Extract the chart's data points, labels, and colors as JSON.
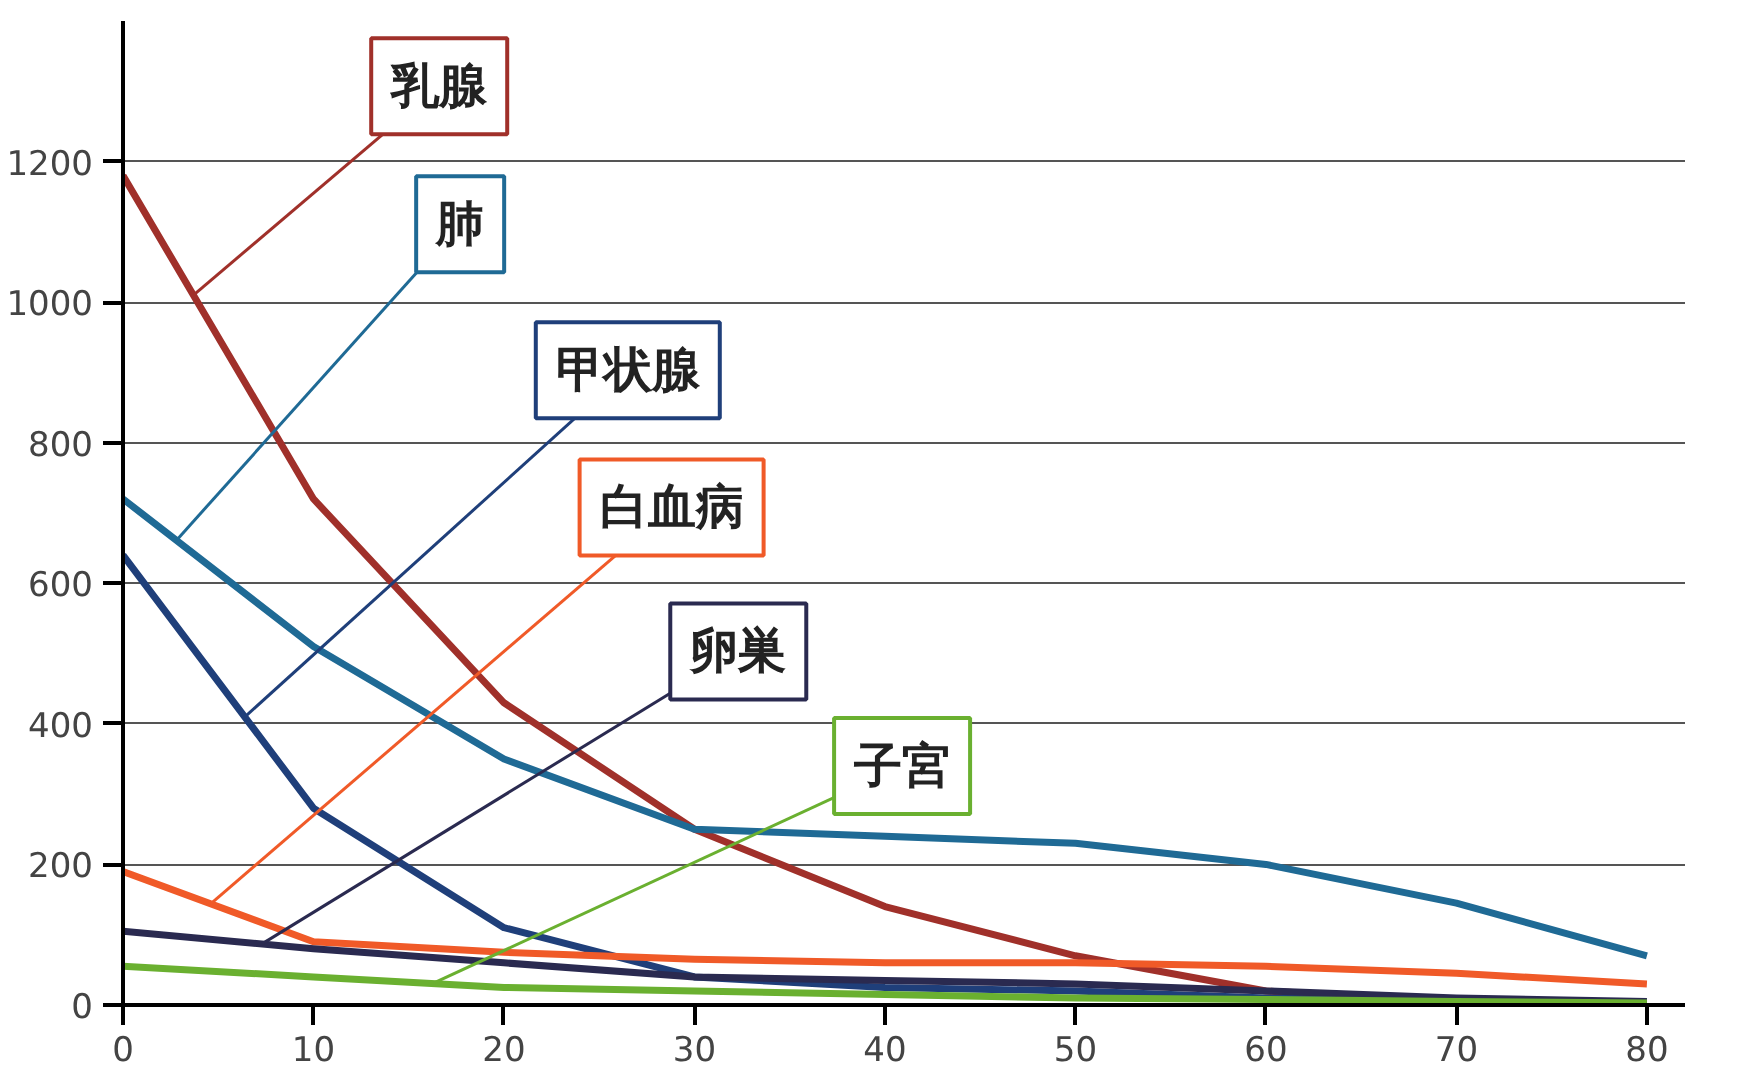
{
  "chart_data": {
    "type": "line",
    "x": [
      0,
      10,
      20,
      30,
      40,
      50,
      60,
      70,
      80
    ],
    "series": [
      {
        "color": "#a0302a",
        "values": [
          1180,
          720,
          430,
          250,
          140,
          70,
          20,
          5,
          0
        ]
      },
      {
        "color": "#1f6a95",
        "values": [
          720,
          510,
          350,
          250,
          240,
          230,
          200,
          145,
          70
        ]
      },
      {
        "color": "#1f3f7a",
        "values": [
          640,
          280,
          110,
          40,
          25,
          20,
          10,
          5,
          0
        ]
      },
      {
        "color": "#f05a28",
        "values": [
          190,
          90,
          75,
          65,
          60,
          60,
          55,
          45,
          30
        ]
      },
      {
        "color": "#2a2a50",
        "values": [
          105,
          80,
          60,
          40,
          35,
          30,
          20,
          10,
          5
        ]
      },
      {
        "color": "#6ab030",
        "values": [
          55,
          40,
          25,
          20,
          15,
          10,
          8,
          5,
          3
        ]
      }
    ],
    "annotations": [
      {
        "text": "乳腺",
        "x": 3.7,
        "y": 1010
      },
      {
        "text": "肺",
        "x": 2.8,
        "y": 661
      },
      {
        "text": "甲状腺",
        "x": 6.4,
        "y": 410
      },
      {
        "text": "白血病",
        "x": 4.6,
        "y": 144
      },
      {
        "text": "卵巣",
        "x": 7.3,
        "y": 87
      },
      {
        "text": "子宮",
        "x": 16.3,
        "y": 31
      }
    ],
    "xlim": [
      0,
      82
    ],
    "ylim": [
      0,
      1400
    ],
    "xticks": [
      0,
      10,
      20,
      30,
      40,
      50,
      60,
      70,
      80
    ],
    "yticks": [
      0,
      200,
      400,
      600,
      800,
      1000,
      1200
    ],
    "grid": "y",
    "marker": "none",
    "line_style": "solid"
  }
}
